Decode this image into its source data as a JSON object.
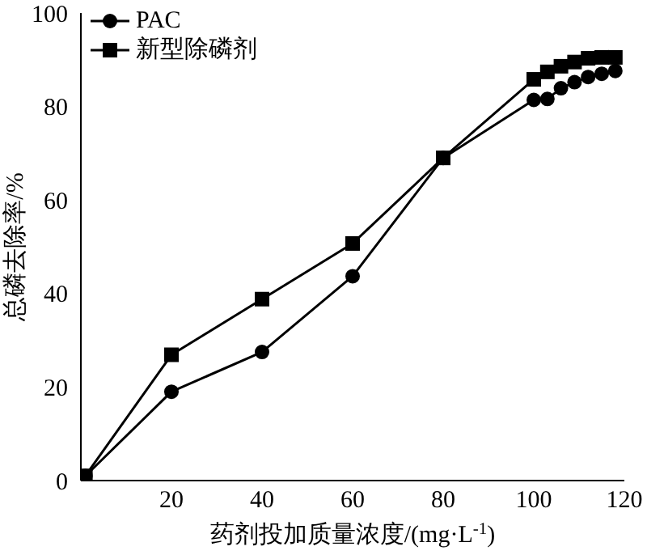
{
  "chart_data": {
    "type": "line",
    "xlabel": "药剂投加质量浓度/(mg·L$^{-1}$)",
    "ylabel": "总磷去除率/%",
    "x": [
      1,
      20,
      40,
      60,
      80,
      100,
      103,
      106,
      109,
      112,
      115,
      118
    ],
    "series": [
      {
        "name": "PAC",
        "color": "#000000",
        "marker": "circle",
        "values": [
          1,
          19,
          27.5,
          43.7,
          69,
          81.4,
          81.6,
          83.9,
          85.2,
          86.3,
          87,
          87.6
        ]
      },
      {
        "name": "新型除磷剂",
        "color": "#000000",
        "marker": "square",
        "values": [
          1,
          26.9,
          38.8,
          50.7,
          69,
          85.8,
          87.4,
          88.6,
          89.5,
          90.3,
          90.5,
          90.5
        ]
      }
    ],
    "xlim": [
      0,
      120
    ],
    "xticks": [
      20,
      40,
      60,
      80,
      100,
      120
    ],
    "ylim": [
      0,
      100
    ],
    "yticks": [
      0,
      20,
      40,
      60,
      80,
      100
    ],
    "grid": false,
    "legend": "top left"
  }
}
